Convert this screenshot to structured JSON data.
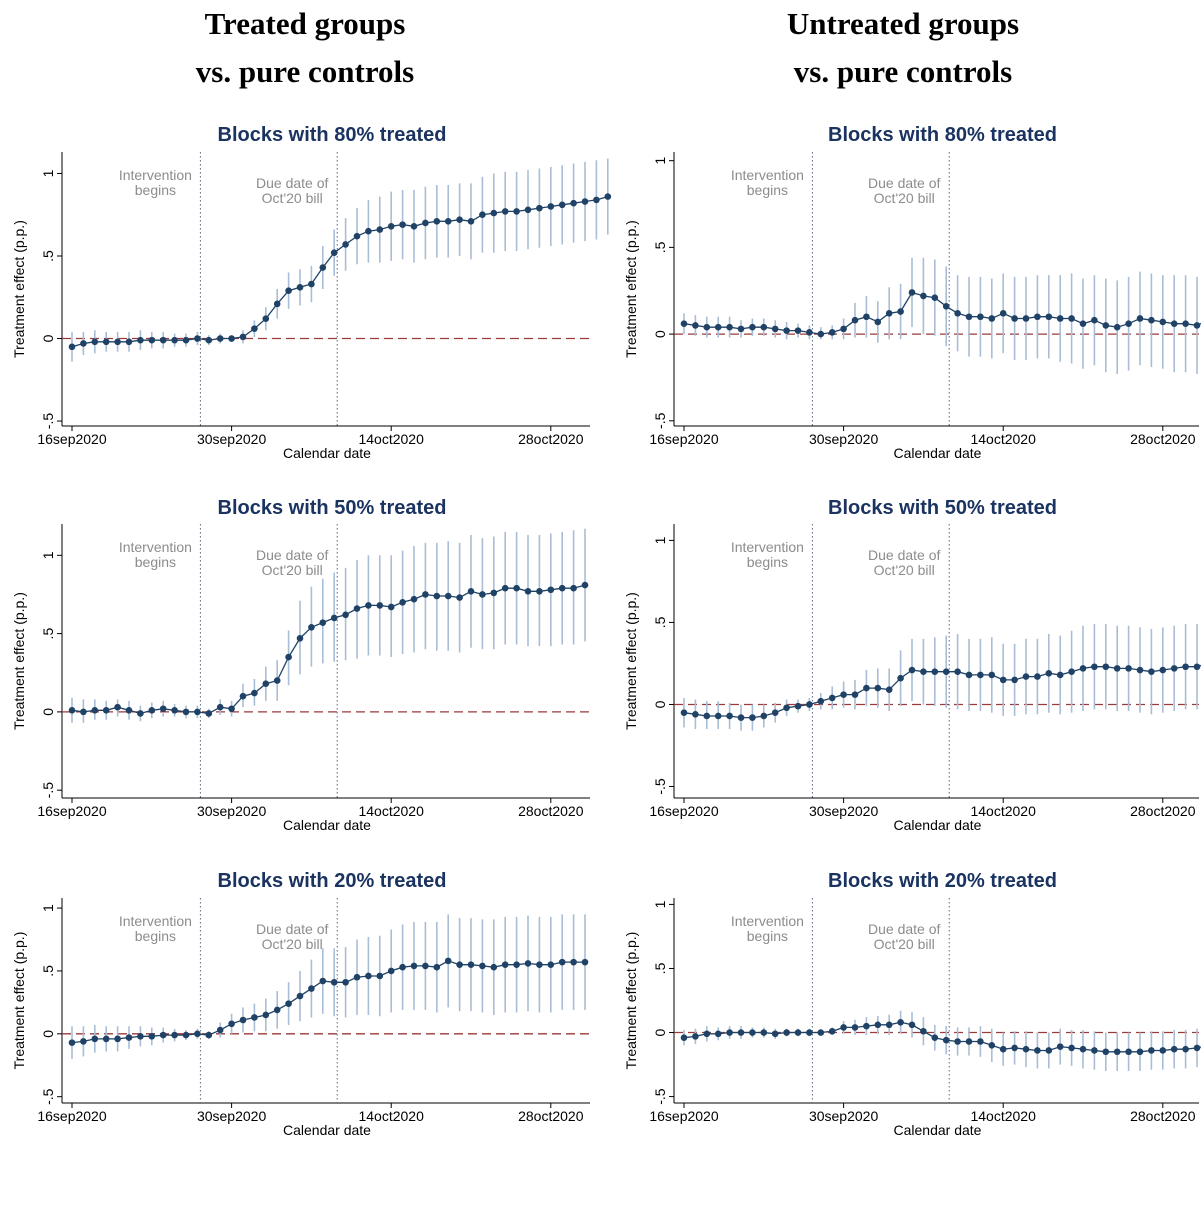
{
  "columns": [
    {
      "line1": "Treated groups",
      "line2": "vs. pure controls"
    },
    {
      "line1": "Untreated groups",
      "line2": "vs. pure controls"
    }
  ],
  "colors": {
    "point": "#1f4266",
    "ci": "#a9bed6",
    "zero_line": "#9a3a3a",
    "vline": "#5a6a80",
    "annotation": "#8c8c8c",
    "title": "#1a3360"
  },
  "chart_data": [
    {
      "type": "scatter",
      "title": "Blocks with 80% treated",
      "xlabel": "Calendar date",
      "ylabel": "Treatment effect (p.p.)",
      "x_start": "16sep2020",
      "x_ticks": [
        "16sep2020",
        "30sep2020",
        "14oct2020",
        "28oct2020"
      ],
      "y_ticks": [
        "-.5",
        "0",
        ".5",
        "1"
      ],
      "ylim": [
        -0.53,
        1.13
      ],
      "annotations": [
        {
          "text": [
            "Intervention",
            "begins"
          ],
          "date": "27sep2020"
        },
        {
          "text": [
            "Due date of",
            "Oct'20 bill"
          ],
          "date": "09oct2020"
        }
      ],
      "y": [
        -0.05,
        -0.03,
        -0.02,
        -0.02,
        -0.02,
        -0.02,
        -0.01,
        -0.01,
        -0.01,
        -0.01,
        -0.01,
        0.0,
        -0.01,
        0.0,
        0.0,
        0.01,
        0.06,
        0.12,
        0.21,
        0.29,
        0.31,
        0.33,
        0.43,
        0.52,
        0.57,
        0.62,
        0.65,
        0.66,
        0.68,
        0.69,
        0.68,
        0.7,
        0.71,
        0.71,
        0.72,
        0.71,
        0.75,
        0.76,
        0.77,
        0.77,
        0.78,
        0.79,
        0.8,
        0.81,
        0.82,
        0.83,
        0.84,
        0.86
      ],
      "ci_low": [
        -0.14,
        -0.1,
        -0.09,
        -0.08,
        -0.08,
        -0.08,
        -0.07,
        -0.06,
        -0.06,
        -0.05,
        -0.05,
        -0.04,
        -0.04,
        -0.03,
        -0.02,
        -0.03,
        0.01,
        0.05,
        0.12,
        0.18,
        0.2,
        0.22,
        0.3,
        0.38,
        0.41,
        0.45,
        0.46,
        0.46,
        0.47,
        0.48,
        0.46,
        0.48,
        0.49,
        0.49,
        0.5,
        0.48,
        0.52,
        0.52,
        0.53,
        0.53,
        0.54,
        0.55,
        0.56,
        0.57,
        0.58,
        0.59,
        0.6,
        0.63
      ],
      "ci_high": [
        0.04,
        0.04,
        0.05,
        0.04,
        0.04,
        0.04,
        0.05,
        0.04,
        0.04,
        0.03,
        0.03,
        0.04,
        0.02,
        0.03,
        0.02,
        0.05,
        0.11,
        0.19,
        0.3,
        0.4,
        0.42,
        0.44,
        0.56,
        0.66,
        0.73,
        0.79,
        0.84,
        0.86,
        0.89,
        0.9,
        0.9,
        0.92,
        0.93,
        0.93,
        0.94,
        0.94,
        0.98,
        1.0,
        1.01,
        1.01,
        1.02,
        1.03,
        1.04,
        1.05,
        1.06,
        1.07,
        1.08,
        1.09
      ]
    },
    {
      "type": "scatter",
      "title": "Blocks with 80% treated",
      "xlabel": "Calendar date",
      "ylabel": "Treatment effect (p.p.)",
      "x_start": "16sep2020",
      "x_ticks": [
        "16sep2020",
        "30sep2020",
        "14oct2020",
        "28oct2020"
      ],
      "y_ticks": [
        "-.5",
        "0",
        ".5",
        "1"
      ],
      "ylim": [
        -0.53,
        1.05
      ],
      "annotations": [
        {
          "text": [
            "Intervention",
            "begins"
          ],
          "date": "27sep2020"
        },
        {
          "text": [
            "Due date of",
            "Oct'20 bill"
          ],
          "date": "09oct2020"
        }
      ],
      "y": [
        0.06,
        0.05,
        0.04,
        0.04,
        0.04,
        0.03,
        0.04,
        0.04,
        0.03,
        0.02,
        0.02,
        0.01,
        0.0,
        0.01,
        0.03,
        0.08,
        0.1,
        0.07,
        0.12,
        0.13,
        0.24,
        0.22,
        0.21,
        0.16,
        0.12,
        0.1,
        0.1,
        0.09,
        0.12,
        0.09,
        0.09,
        0.1,
        0.1,
        0.09,
        0.09,
        0.06,
        0.08,
        0.05,
        0.04,
        0.06,
        0.09,
        0.08,
        0.07,
        0.06,
        0.06,
        0.05,
        0.08,
        0.09
      ],
      "ci_low": [
        0.0,
        -0.01,
        -0.02,
        -0.02,
        -0.02,
        -0.02,
        -0.01,
        -0.01,
        -0.02,
        -0.03,
        -0.02,
        -0.03,
        -0.03,
        -0.03,
        -0.03,
        -0.02,
        -0.02,
        -0.05,
        -0.03,
        -0.03,
        0.04,
        0.0,
        -0.01,
        -0.07,
        -0.1,
        -0.13,
        -0.13,
        -0.14,
        -0.11,
        -0.15,
        -0.15,
        -0.14,
        -0.14,
        -0.16,
        -0.17,
        -0.2,
        -0.18,
        -0.22,
        -0.23,
        -0.21,
        -0.18,
        -0.19,
        -0.2,
        -0.22,
        -0.22,
        -0.23,
        -0.2,
        -0.19
      ],
      "ci_high": [
        0.12,
        0.11,
        0.1,
        0.1,
        0.1,
        0.08,
        0.09,
        0.09,
        0.08,
        0.07,
        0.06,
        0.05,
        0.04,
        0.05,
        0.09,
        0.18,
        0.22,
        0.19,
        0.27,
        0.29,
        0.44,
        0.44,
        0.43,
        0.39,
        0.34,
        0.33,
        0.33,
        0.32,
        0.35,
        0.33,
        0.33,
        0.34,
        0.34,
        0.34,
        0.35,
        0.32,
        0.34,
        0.32,
        0.31,
        0.33,
        0.36,
        0.35,
        0.34,
        0.34,
        0.34,
        0.33,
        0.36,
        0.37
      ]
    },
    {
      "type": "scatter",
      "title": "Blocks with 50% treated",
      "xlabel": "Calendar date",
      "ylabel": "Treatment effect (p.p.)",
      "x_start": "16sep2020",
      "x_ticks": [
        "16sep2020",
        "30sep2020",
        "14oct2020",
        "28oct2020"
      ],
      "y_ticks": [
        "-.5",
        "0",
        ".5",
        "1"
      ],
      "ylim": [
        -0.55,
        1.2
      ],
      "annotations": [
        {
          "text": [
            "Intervention",
            "begins"
          ],
          "date": "27sep2020"
        },
        {
          "text": [
            "Due date of",
            "Oct'20 bill"
          ],
          "date": "09oct2020"
        }
      ],
      "y": [
        0.01,
        0.0,
        0.01,
        0.01,
        0.03,
        0.01,
        -0.01,
        0.01,
        0.02,
        0.01,
        0.0,
        0.0,
        -0.01,
        0.03,
        0.02,
        0.1,
        0.12,
        0.18,
        0.2,
        0.35,
        0.47,
        0.54,
        0.57,
        0.6,
        0.62,
        0.66,
        0.68,
        0.68,
        0.67,
        0.7,
        0.72,
        0.75,
        0.74,
        0.74,
        0.73,
        0.77,
        0.75,
        0.76,
        0.79,
        0.79,
        0.77,
        0.77,
        0.78,
        0.79,
        0.79,
        0.81
      ],
      "ci_low": [
        -0.07,
        -0.07,
        -0.05,
        -0.05,
        -0.03,
        -0.05,
        -0.06,
        -0.04,
        -0.03,
        -0.03,
        -0.04,
        -0.04,
        -0.04,
        -0.02,
        -0.03,
        0.03,
        0.04,
        0.07,
        0.07,
        0.17,
        0.24,
        0.29,
        0.31,
        0.32,
        0.33,
        0.34,
        0.36,
        0.36,
        0.35,
        0.37,
        0.38,
        0.4,
        0.39,
        0.39,
        0.38,
        0.41,
        0.4,
        0.4,
        0.43,
        0.43,
        0.42,
        0.42,
        0.42,
        0.43,
        0.43,
        0.45
      ],
      "ci_high": [
        0.09,
        0.08,
        0.08,
        0.07,
        0.08,
        0.07,
        0.04,
        0.06,
        0.07,
        0.05,
        0.04,
        0.04,
        0.02,
        0.08,
        0.07,
        0.18,
        0.21,
        0.29,
        0.33,
        0.52,
        0.71,
        0.8,
        0.85,
        0.89,
        0.92,
        0.97,
        1.0,
        1.0,
        1.0,
        1.03,
        1.06,
        1.08,
        1.08,
        1.09,
        1.08,
        1.13,
        1.11,
        1.12,
        1.15,
        1.15,
        1.13,
        1.13,
        1.14,
        1.15,
        1.16,
        1.17
      ]
    },
    {
      "type": "scatter",
      "title": "Blocks with 50% treated",
      "xlabel": "Calendar date",
      "ylabel": "Treatment effect (p.p.)",
      "x_start": "16sep2020",
      "x_ticks": [
        "16sep2020",
        "30sep2020",
        "14oct2020",
        "28oct2020"
      ],
      "y_ticks": [
        "-.5",
        "0",
        ".5",
        "1"
      ],
      "ylim": [
        -0.57,
        1.1
      ],
      "annotations": [
        {
          "text": [
            "Intervention",
            "begins"
          ],
          "date": "27sep2020"
        },
        {
          "text": [
            "Due date of",
            "Oct'20 bill"
          ],
          "date": "09oct2020"
        }
      ],
      "y": [
        -0.05,
        -0.06,
        -0.07,
        -0.07,
        -0.07,
        -0.08,
        -0.08,
        -0.07,
        -0.05,
        -0.02,
        -0.01,
        0.0,
        0.02,
        0.04,
        0.06,
        0.06,
        0.1,
        0.1,
        0.09,
        0.16,
        0.21,
        0.2,
        0.2,
        0.2,
        0.2,
        0.18,
        0.18,
        0.18,
        0.15,
        0.15,
        0.17,
        0.17,
        0.19,
        0.18,
        0.2,
        0.22,
        0.23,
        0.23,
        0.22,
        0.22,
        0.21,
        0.2,
        0.21,
        0.22,
        0.23,
        0.23,
        0.25
      ],
      "ci_low": [
        -0.14,
        -0.15,
        -0.15,
        -0.15,
        -0.15,
        -0.16,
        -0.16,
        -0.14,
        -0.11,
        -0.07,
        -0.05,
        -0.04,
        -0.03,
        -0.03,
        -0.02,
        -0.03,
        -0.01,
        -0.02,
        -0.04,
        -0.01,
        0.02,
        0.0,
        -0.01,
        -0.02,
        -0.03,
        -0.04,
        -0.04,
        -0.05,
        -0.07,
        -0.07,
        -0.06,
        -0.06,
        -0.05,
        -0.06,
        -0.05,
        -0.04,
        -0.03,
        -0.03,
        -0.04,
        -0.04,
        -0.05,
        -0.06,
        -0.05,
        -0.04,
        -0.03,
        -0.03,
        -0.01
      ],
      "ci_high": [
        0.04,
        0.03,
        0.02,
        0.02,
        0.01,
        0.0,
        0.0,
        0.0,
        0.01,
        0.03,
        0.03,
        0.04,
        0.07,
        0.11,
        0.14,
        0.15,
        0.21,
        0.22,
        0.22,
        0.33,
        0.4,
        0.4,
        0.41,
        0.42,
        0.43,
        0.4,
        0.4,
        0.41,
        0.37,
        0.37,
        0.4,
        0.4,
        0.43,
        0.42,
        0.45,
        0.48,
        0.49,
        0.49,
        0.48,
        0.48,
        0.47,
        0.46,
        0.47,
        0.48,
        0.49,
        0.49,
        0.51
      ]
    },
    {
      "type": "scatter",
      "title": "Blocks with 20% treated",
      "xlabel": "Calendar date",
      "ylabel": "Treatment effect (p.p.)",
      "x_start": "16sep2020",
      "x_ticks": [
        "16sep2020",
        "30sep2020",
        "14oct2020",
        "28oct2020"
      ],
      "y_ticks": [
        "-.5",
        "0",
        ".5",
        "1"
      ],
      "ylim": [
        -0.55,
        1.08
      ],
      "annotations": [
        {
          "text": [
            "Intervention",
            "begins"
          ],
          "date": "27sep2020"
        },
        {
          "text": [
            "Due date of",
            "Oct'20 bill"
          ],
          "date": "09oct2020"
        }
      ],
      "y": [
        -0.07,
        -0.06,
        -0.04,
        -0.04,
        -0.04,
        -0.03,
        -0.02,
        -0.02,
        -0.01,
        -0.01,
        -0.01,
        0.0,
        -0.01,
        0.03,
        0.08,
        0.11,
        0.13,
        0.15,
        0.19,
        0.24,
        0.3,
        0.36,
        0.42,
        0.41,
        0.41,
        0.45,
        0.46,
        0.46,
        0.5,
        0.53,
        0.54,
        0.54,
        0.53,
        0.58,
        0.55,
        0.55,
        0.54,
        0.53,
        0.55,
        0.55,
        0.56,
        0.55,
        0.55,
        0.57,
        0.57,
        0.57
      ],
      "ci_low": [
        -0.2,
        -0.18,
        -0.15,
        -0.14,
        -0.14,
        -0.12,
        -0.1,
        -0.09,
        -0.07,
        -0.06,
        -0.05,
        -0.04,
        -0.04,
        -0.03,
        0.0,
        0.01,
        0.02,
        0.02,
        0.04,
        0.07,
        0.1,
        0.13,
        0.16,
        0.14,
        0.13,
        0.15,
        0.15,
        0.14,
        0.17,
        0.19,
        0.19,
        0.19,
        0.17,
        0.21,
        0.18,
        0.18,
        0.17,
        0.15,
        0.17,
        0.17,
        0.18,
        0.17,
        0.17,
        0.19,
        0.19,
        0.19
      ],
      "ci_high": [
        0.06,
        0.06,
        0.07,
        0.06,
        0.06,
        0.06,
        0.06,
        0.05,
        0.05,
        0.04,
        0.03,
        0.04,
        0.02,
        0.09,
        0.16,
        0.21,
        0.24,
        0.28,
        0.34,
        0.41,
        0.5,
        0.59,
        0.68,
        0.68,
        0.69,
        0.75,
        0.77,
        0.78,
        0.83,
        0.87,
        0.89,
        0.89,
        0.89,
        0.95,
        0.92,
        0.92,
        0.91,
        0.91,
        0.93,
        0.93,
        0.94,
        0.93,
        0.93,
        0.95,
        0.95,
        0.95
      ]
    },
    {
      "type": "scatter",
      "title": "Blocks with 20% treated",
      "xlabel": "Calendar date",
      "ylabel": "Treatment effect (p.p.)",
      "x_start": "16sep2020",
      "x_ticks": [
        "16sep2020",
        "30sep2020",
        "14oct2020",
        "28oct2020"
      ],
      "y_ticks": [
        "-.5",
        "0",
        ".5",
        "1"
      ],
      "ylim": [
        -0.55,
        1.05
      ],
      "annotations": [
        {
          "text": [
            "Intervention",
            "begins"
          ],
          "date": "27sep2020"
        },
        {
          "text": [
            "Due date of",
            "Oct'20 bill"
          ],
          "date": "09oct2020"
        }
      ],
      "y": [
        -0.04,
        -0.03,
        -0.01,
        -0.01,
        0.0,
        0.0,
        0.0,
        0.0,
        -0.01,
        0.0,
        0.0,
        0.0,
        0.0,
        0.01,
        0.04,
        0.04,
        0.05,
        0.06,
        0.06,
        0.08,
        0.06,
        0.01,
        -0.04,
        -0.06,
        -0.07,
        -0.07,
        -0.07,
        -0.1,
        -0.13,
        -0.12,
        -0.13,
        -0.14,
        -0.14,
        -0.11,
        -0.12,
        -0.13,
        -0.14,
        -0.15,
        -0.15,
        -0.15,
        -0.15,
        -0.14,
        -0.14,
        -0.13,
        -0.13,
        -0.12,
        -0.1
      ],
      "ci_low": [
        -0.1,
        -0.09,
        -0.07,
        -0.06,
        -0.05,
        -0.05,
        -0.04,
        -0.04,
        -0.05,
        -0.03,
        -0.03,
        -0.03,
        -0.02,
        -0.02,
        -0.01,
        -0.02,
        -0.02,
        -0.01,
        -0.02,
        -0.01,
        -0.04,
        -0.1,
        -0.14,
        -0.17,
        -0.18,
        -0.18,
        -0.19,
        -0.23,
        -0.26,
        -0.25,
        -0.27,
        -0.28,
        -0.28,
        -0.25,
        -0.26,
        -0.28,
        -0.29,
        -0.3,
        -0.3,
        -0.3,
        -0.3,
        -0.29,
        -0.29,
        -0.28,
        -0.28,
        -0.27,
        -0.25
      ],
      "ci_high": [
        0.02,
        0.03,
        0.05,
        0.04,
        0.05,
        0.05,
        0.04,
        0.04,
        0.03,
        0.03,
        0.03,
        0.03,
        0.02,
        0.04,
        0.09,
        0.1,
        0.12,
        0.13,
        0.14,
        0.17,
        0.16,
        0.12,
        0.06,
        0.05,
        0.04,
        0.04,
        0.05,
        0.03,
        0.0,
        0.01,
        0.01,
        0.0,
        0.0,
        0.03,
        0.02,
        0.02,
        0.01,
        0.0,
        0.0,
        0.0,
        0.0,
        0.01,
        0.01,
        0.02,
        0.02,
        0.03,
        0.05
      ]
    }
  ]
}
